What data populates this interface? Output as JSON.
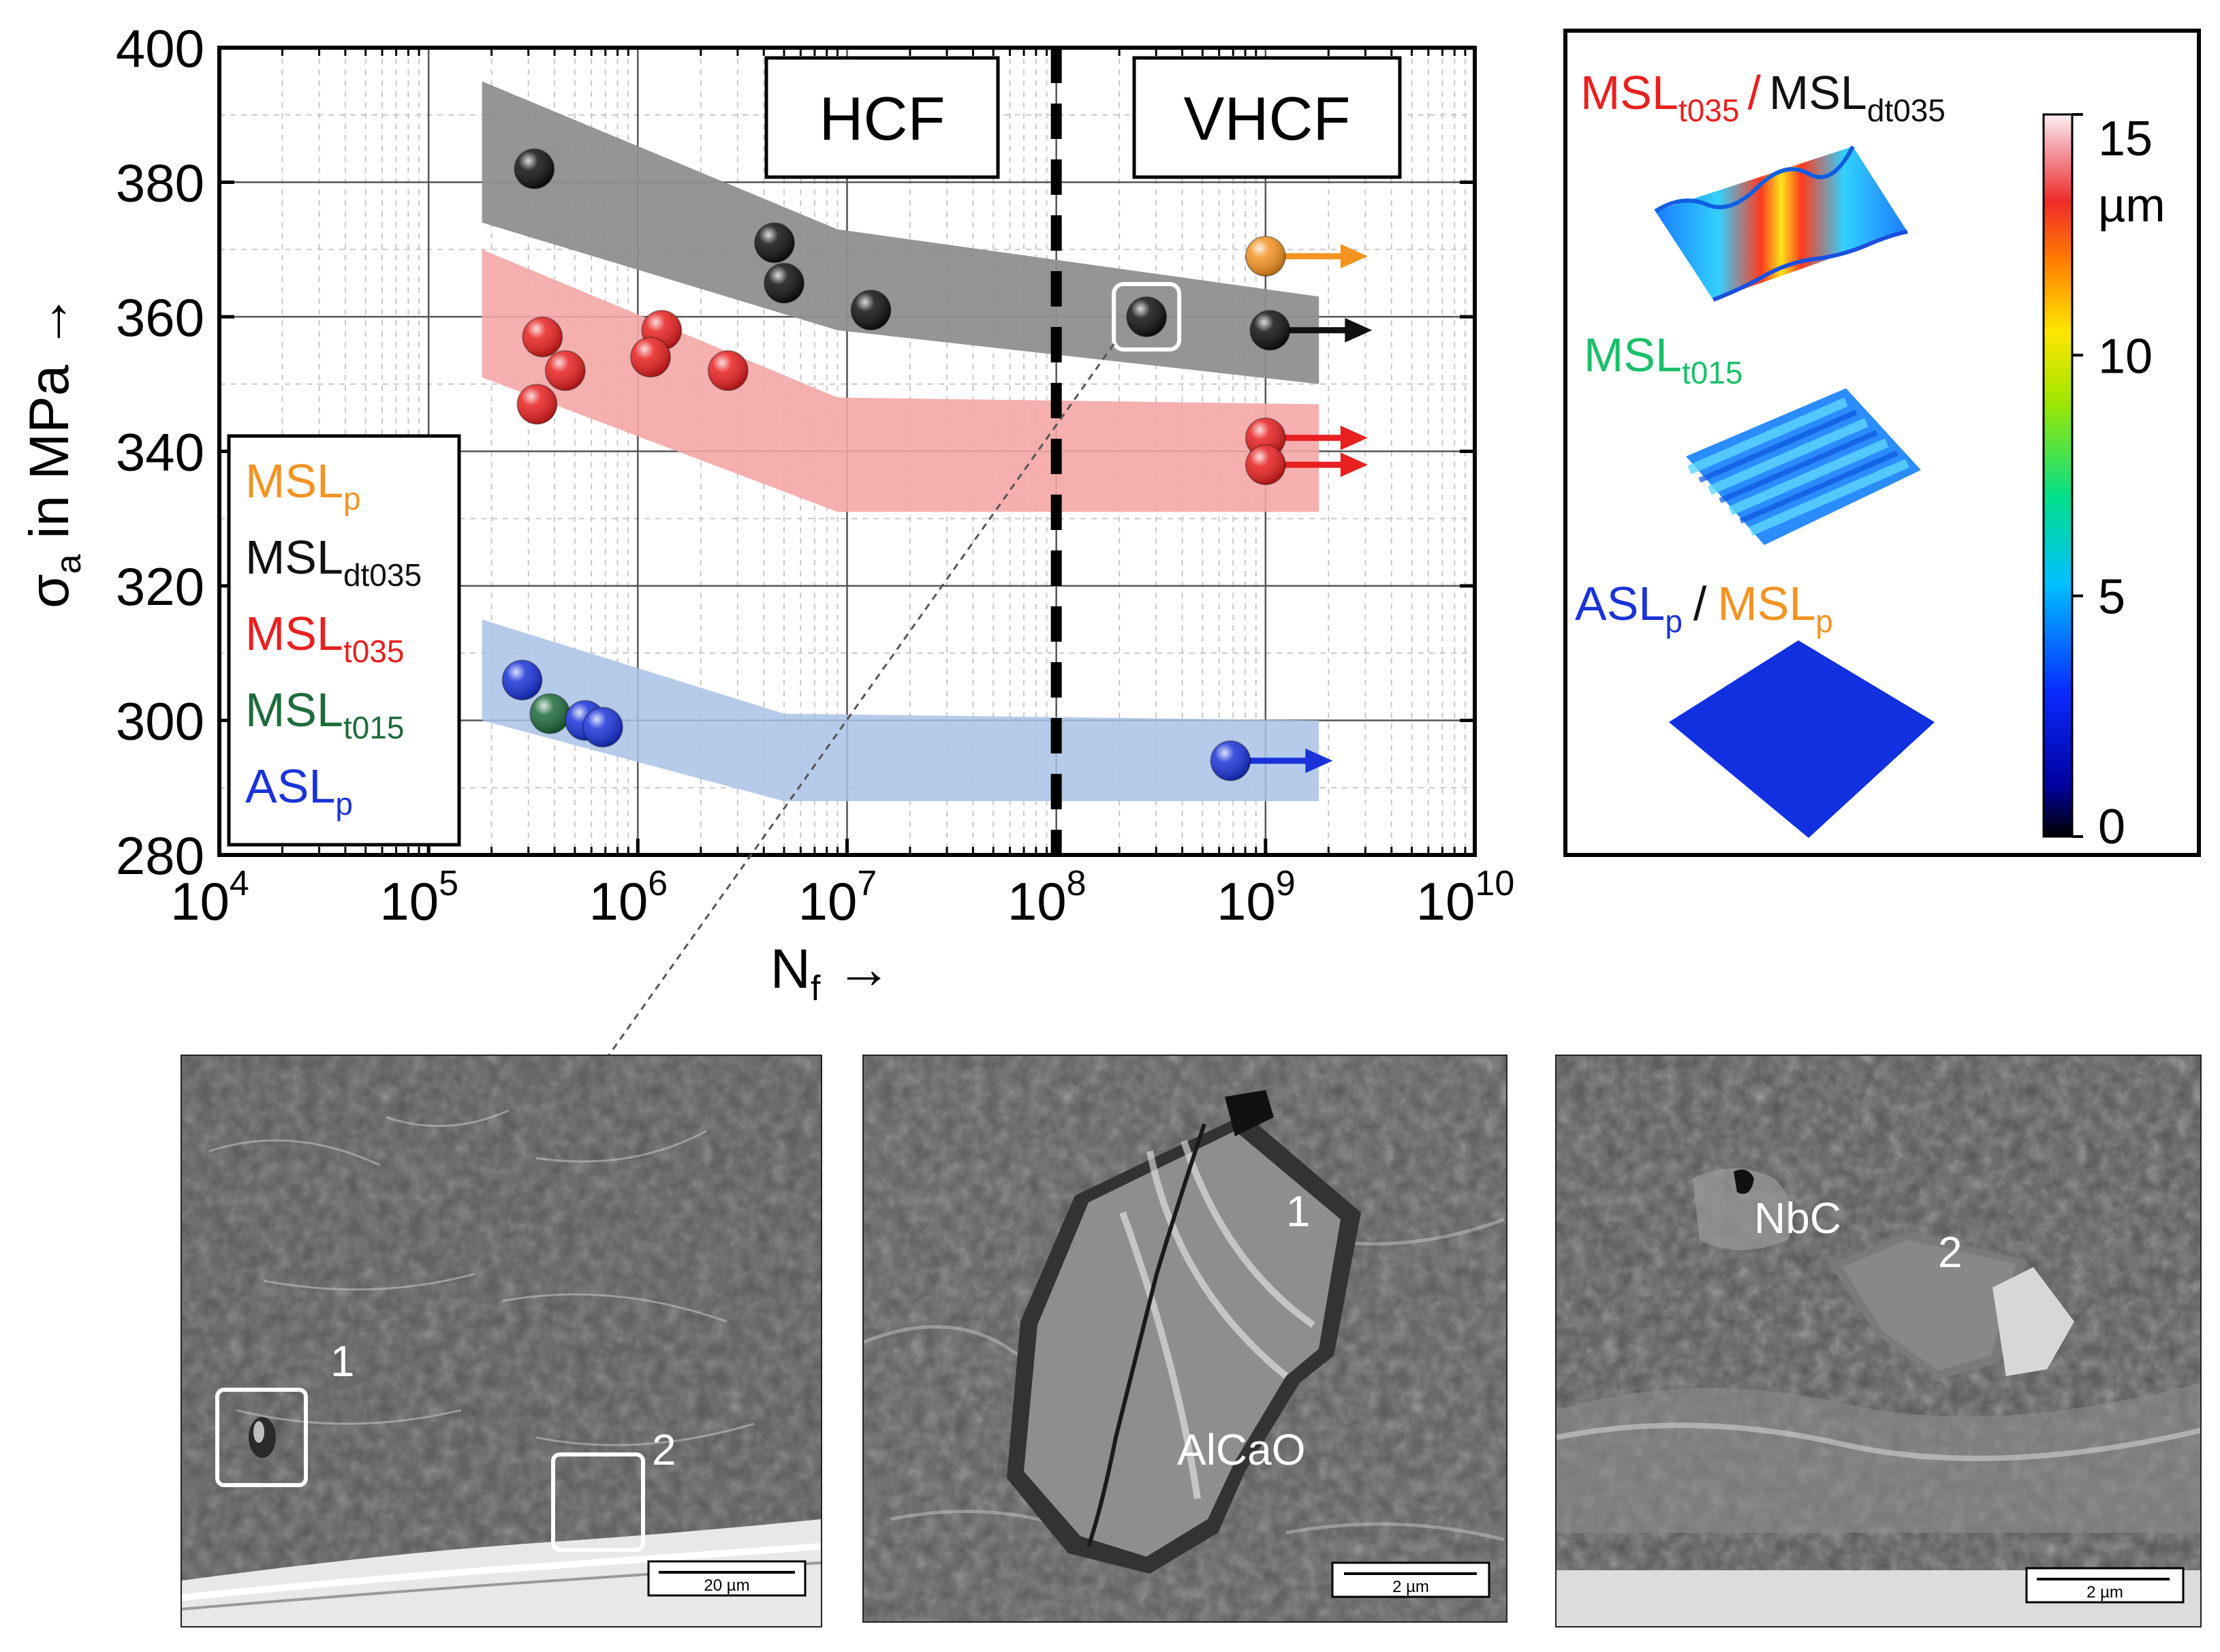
{
  "chart_data": {
    "type": "scatter",
    "title": "",
    "xlabel": "N",
    "xlabel_sub": "f",
    "ylabel": "σ",
    "ylabel_sub": "a",
    "ylabel_rest": "in MPa",
    "arrow": "→",
    "xscale": "log",
    "xlim": [
      10000,
      10000000000
    ],
    "ylim": [
      280,
      400
    ],
    "xticks": [
      {
        "base": "10",
        "exp": "4",
        "value": 10000
      },
      {
        "base": "10",
        "exp": "5",
        "value": 100000
      },
      {
        "base": "10",
        "exp": "6",
        "value": 1000000
      },
      {
        "base": "10",
        "exp": "7",
        "value": 10000000
      },
      {
        "base": "10",
        "exp": "8",
        "value": 100000000
      },
      {
        "base": "10",
        "exp": "9",
        "value": 1000000000
      },
      {
        "base": "10",
        "exp": "10",
        "value": 10000000000
      }
    ],
    "yticks": [
      "280",
      "300",
      "320",
      "340",
      "360",
      "380",
      "400"
    ],
    "regime_boundary": 100000000,
    "regions": [
      {
        "label": "HCF",
        "x_from": 10000,
        "x_to": 100000000
      },
      {
        "label": "VHCF",
        "x_from": 100000000,
        "x_to": 10000000000
      }
    ],
    "legend_position": "bottom-left",
    "series": [
      {
        "name": "MSL",
        "sub": "p",
        "color": "#f39322",
        "points": [
          {
            "x": 1000000000,
            "y": 369,
            "runout": true
          }
        ],
        "band": []
      },
      {
        "name": "MSL",
        "sub": "dt035",
        "color": "#111111",
        "points": [
          {
            "x": 320000,
            "y": 382
          },
          {
            "x": 4500000,
            "y": 371
          },
          {
            "x": 5000000,
            "y": 365
          },
          {
            "x": 13000000,
            "y": 361
          },
          {
            "x": 270000000,
            "y": 360,
            "highlight": true
          },
          {
            "x": 1050000000,
            "y": 358,
            "runout": true
          }
        ],
        "band": {
          "upper": [
            [
              180000,
              395
            ],
            [
              9000000,
              373
            ],
            [
              1800000000,
              363
            ]
          ],
          "lower": [
            [
              1800000000,
              350
            ],
            [
              9000000,
              358
            ],
            [
              180000,
              374
            ]
          ]
        }
      },
      {
        "name": "MSL",
        "sub": "t035",
        "color": "#e82020",
        "points": [
          {
            "x": 350000,
            "y": 357
          },
          {
            "x": 450000,
            "y": 352
          },
          {
            "x": 330000,
            "y": 347
          },
          {
            "x": 1300000,
            "y": 358
          },
          {
            "x": 1150000,
            "y": 354
          },
          {
            "x": 2700000,
            "y": 352
          },
          {
            "x": 1000000000,
            "y": 342,
            "runout": true
          },
          {
            "x": 1000000000,
            "y": 338,
            "runout": true
          }
        ],
        "band": {
          "upper": [
            [
              180000,
              370
            ],
            [
              9000000,
              348
            ],
            [
              1800000000,
              347
            ]
          ],
          "lower": [
            [
              1800000000,
              331
            ],
            [
              9000000,
              331
            ],
            [
              180000,
              351
            ]
          ]
        }
      },
      {
        "name": "MSL",
        "sub": "t015",
        "color": "#1e6b3c",
        "points": [
          {
            "x": 380000,
            "y": 301
          }
        ],
        "band": []
      },
      {
        "name": "ASL",
        "sub": "p",
        "color": "#1a33d9",
        "points": [
          {
            "x": 280000,
            "y": 306
          },
          {
            "x": 560000,
            "y": 300
          },
          {
            "x": 680000,
            "y": 299
          },
          {
            "x": 680000000,
            "y": 294,
            "runout": true
          }
        ],
        "band": {
          "upper": [
            [
              180000,
              315
            ],
            [
              5000000,
              301
            ],
            [
              1800000000,
              300
            ]
          ],
          "lower": [
            [
              1800000000,
              288
            ],
            [
              5000000,
              288
            ],
            [
              180000,
              300
            ]
          ]
        }
      }
    ]
  },
  "colorbar": {
    "title_1_name": "MSL",
    "title_1_sub": "t035",
    "title_sep": "/",
    "title_2_name": "MSL",
    "title_2_sub": "dt035",
    "mid_name": "MSL",
    "mid_sub": "t015",
    "bot_1_name": "ASL",
    "bot_1_sub": "p",
    "bot_sep": "/",
    "bot_2_name": "MSL",
    "bot_2_sub": "p",
    "ticks": [
      "15",
      "10",
      "5",
      "0"
    ],
    "unit": "µm",
    "range": [
      0,
      15
    ]
  },
  "micrographs": [
    {
      "name": "overview",
      "labels": [
        "1",
        "2"
      ],
      "scalebar": "20 µm"
    },
    {
      "name": "inclusion-1",
      "labels": [
        "1",
        "AlCaO"
      ],
      "scalebar": "2 µm"
    },
    {
      "name": "inclusion-2",
      "labels": [
        "NbC",
        "2"
      ],
      "scalebar": "2 µm"
    }
  ]
}
